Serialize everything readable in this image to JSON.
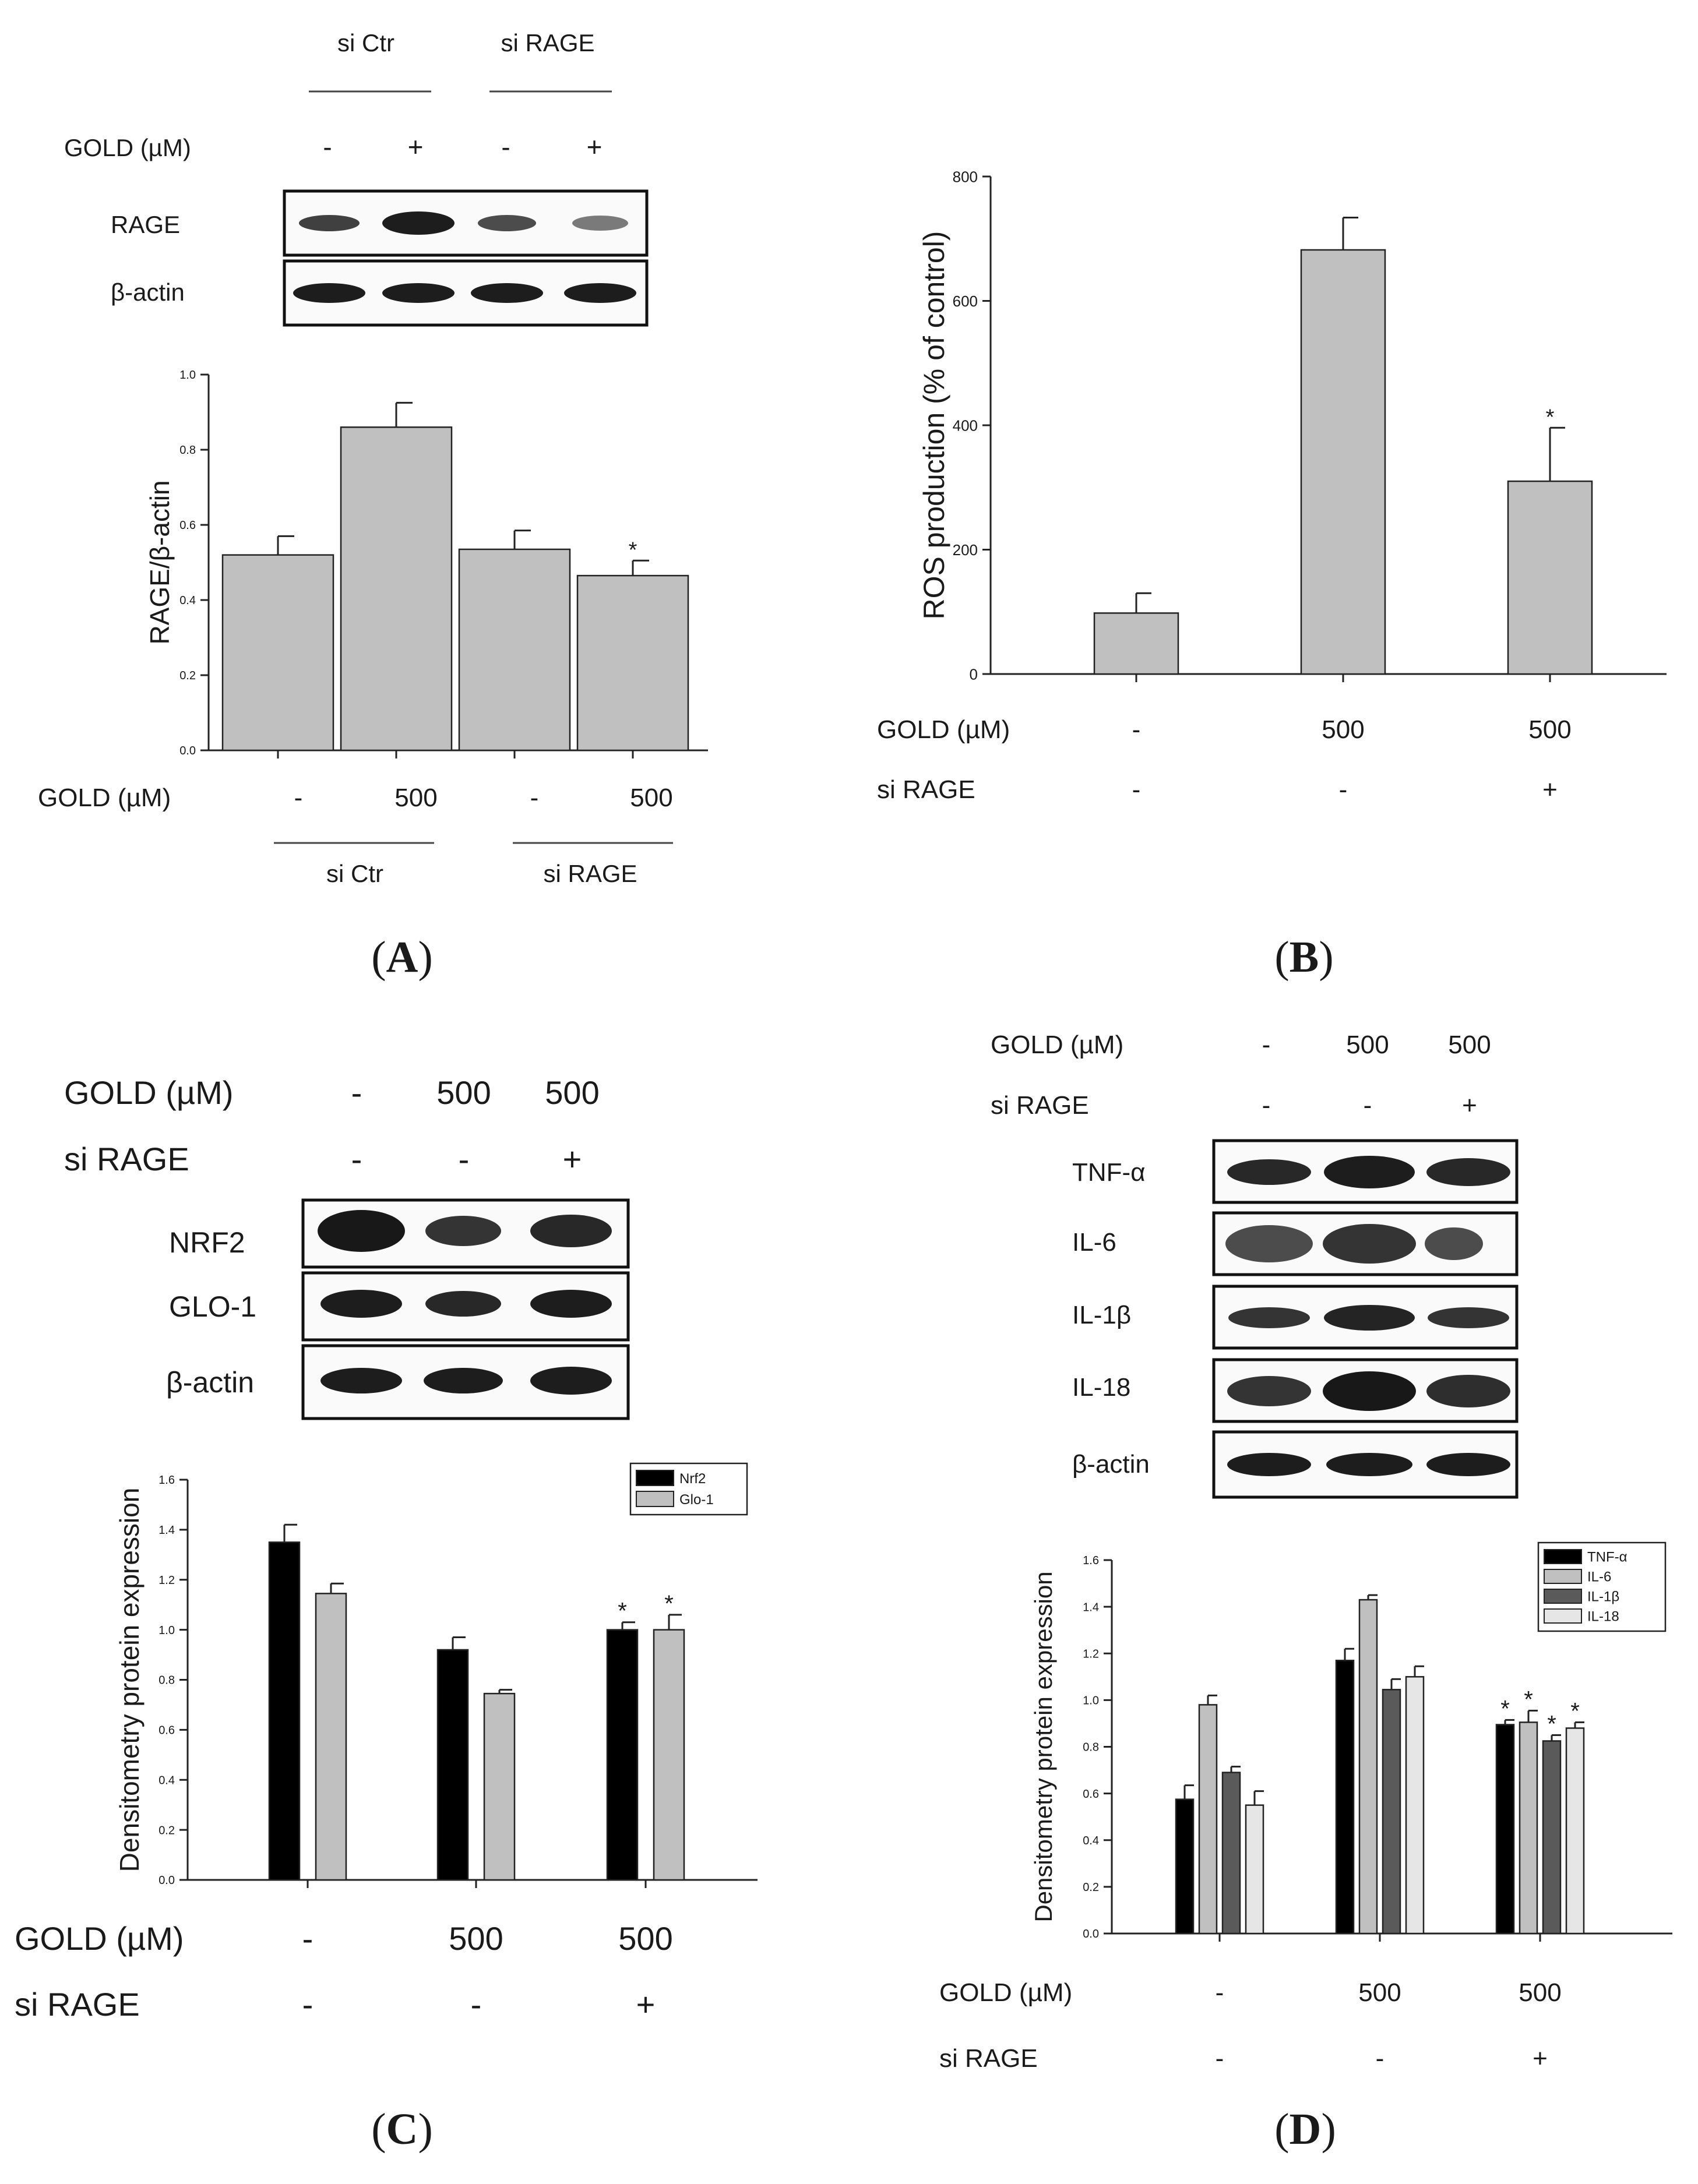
{
  "panel_a": {
    "caption": "A",
    "blot": {
      "groups": [
        "si Ctr",
        "si RAGE"
      ],
      "row_label": "GOLD (µM)",
      "gold_marks": [
        "-",
        "+",
        "-",
        "+"
      ],
      "bands": [
        "RAGE",
        "β-actin"
      ]
    },
    "below": {
      "row_label": "GOLD (µM)",
      "gold_values": [
        "-",
        "500",
        "-",
        "500"
      ],
      "groups": [
        "si Ctr",
        "si RAGE"
      ]
    }
  },
  "panel_b": {
    "caption": "B",
    "rows": [
      {
        "label": "GOLD (µM)",
        "values": [
          "-",
          "500",
          "500"
        ]
      },
      {
        "label": "si RAGE",
        "values": [
          "-",
          "-",
          "+"
        ]
      }
    ]
  },
  "panel_c": {
    "caption": "C",
    "rows": [
      {
        "label": "GOLD (µM)",
        "values": [
          "-",
          "500",
          "500"
        ]
      },
      {
        "label": "si RAGE",
        "values": [
          "-",
          "-",
          "+"
        ]
      }
    ],
    "bands": [
      "NRF2",
      "GLO-1",
      "β-actin"
    ],
    "below_rows": [
      {
        "label": "GOLD (µM)",
        "values": [
          "-",
          "500",
          "500"
        ]
      },
      {
        "label": "si RAGE",
        "values": [
          "-",
          "-",
          "+"
        ]
      }
    ]
  },
  "panel_d": {
    "caption": "D",
    "rows": [
      {
        "label": "GOLD (µM)",
        "values": [
          "-",
          "500",
          "500"
        ]
      },
      {
        "label": "si RAGE",
        "values": [
          "-",
          "-",
          "+"
        ]
      }
    ],
    "bands": [
      "TNF-α",
      "IL-6",
      "IL-1β",
      "IL-18",
      "β-actin"
    ],
    "below_rows": [
      {
        "label": "GOLD (µM)",
        "values": [
          "-",
          "500",
          "500"
        ]
      },
      {
        "label": "si RAGE",
        "values": [
          "-",
          "-",
          "+"
        ]
      }
    ]
  },
  "colors": {
    "bar_gray": "#c0c0c0",
    "bar_black": "#000000",
    "bar_dark_gray": "#5a5a5a",
    "bar_light_gray": "#e6e6e6",
    "band": "#111111"
  },
  "chart_data": [
    {
      "panel": "A",
      "type": "bar",
      "categories": [
        "-",
        "500",
        "-",
        "500"
      ],
      "values": [
        0.52,
        0.86,
        0.535,
        0.465
      ],
      "errors": [
        0.05,
        0.065,
        0.05,
        0.04
      ],
      "significant": [
        false,
        false,
        false,
        true
      ],
      "ylabel": "RAGE/β-actin",
      "ylim": [
        0,
        1.0
      ],
      "yticks": [
        "0.0",
        "0.2",
        "0.4",
        "0.6",
        "0.8",
        "1.0"
      ],
      "marker": "*"
    },
    {
      "panel": "B",
      "type": "bar",
      "categories": [
        "-",
        "500",
        "500"
      ],
      "values": [
        98,
        682,
        310
      ],
      "errors": [
        32,
        52,
        86
      ],
      "significant": [
        false,
        false,
        true
      ],
      "ylabel": "ROS production (% of control)",
      "ylim": [
        0,
        800
      ],
      "yticks": [
        "0",
        "200",
        "400",
        "600",
        "800"
      ],
      "marker": "*"
    },
    {
      "panel": "C",
      "type": "bar",
      "categories": [
        "-",
        "500",
        "500"
      ],
      "series": [
        {
          "name": "Nrf2",
          "values": [
            1.35,
            0.92,
            1.0
          ],
          "errors": [
            0.07,
            0.05,
            0.03
          ],
          "significant": [
            false,
            false,
            true
          ]
        },
        {
          "name": "Glo-1",
          "values": [
            1.145,
            0.745,
            1.0
          ],
          "errors": [
            0.04,
            0.015,
            0.06
          ],
          "significant": [
            false,
            false,
            true
          ]
        }
      ],
      "ylabel": "Densitometry protein expression",
      "ylim": [
        0,
        1.6
      ],
      "yticks": [
        "0.0",
        "0.2",
        "0.4",
        "0.6",
        "0.8",
        "1.0",
        "1.2",
        "1.4",
        "1.6"
      ],
      "legend": "top-right",
      "marker": "*"
    },
    {
      "panel": "D",
      "type": "bar",
      "categories": [
        "-",
        "500",
        "500"
      ],
      "series": [
        {
          "name": "TNF-α",
          "values": [
            0.575,
            1.17,
            0.895
          ],
          "errors": [
            0.06,
            0.05,
            0.02
          ],
          "significant": [
            false,
            false,
            true
          ]
        },
        {
          "name": "IL-6",
          "values": [
            0.98,
            1.43,
            0.905
          ],
          "errors": [
            0.04,
            0.02,
            0.05
          ],
          "significant": [
            false,
            false,
            true
          ]
        },
        {
          "name": "IL-1β",
          "values": [
            0.69,
            1.045,
            0.825
          ],
          "errors": [
            0.025,
            0.045,
            0.025
          ],
          "significant": [
            false,
            false,
            true
          ]
        },
        {
          "name": "IL-18",
          "values": [
            0.55,
            1.1,
            0.88
          ],
          "errors": [
            0.06,
            0.045,
            0.025
          ],
          "significant": [
            false,
            false,
            true
          ]
        }
      ],
      "ylabel": "Densitometry protein expression",
      "ylim": [
        0,
        1.6
      ],
      "yticks": [
        "0.0",
        "0.2",
        "0.4",
        "0.6",
        "0.8",
        "1.0",
        "1.2",
        "1.4",
        "1.6"
      ],
      "legend": "top-right",
      "marker": "*"
    }
  ]
}
